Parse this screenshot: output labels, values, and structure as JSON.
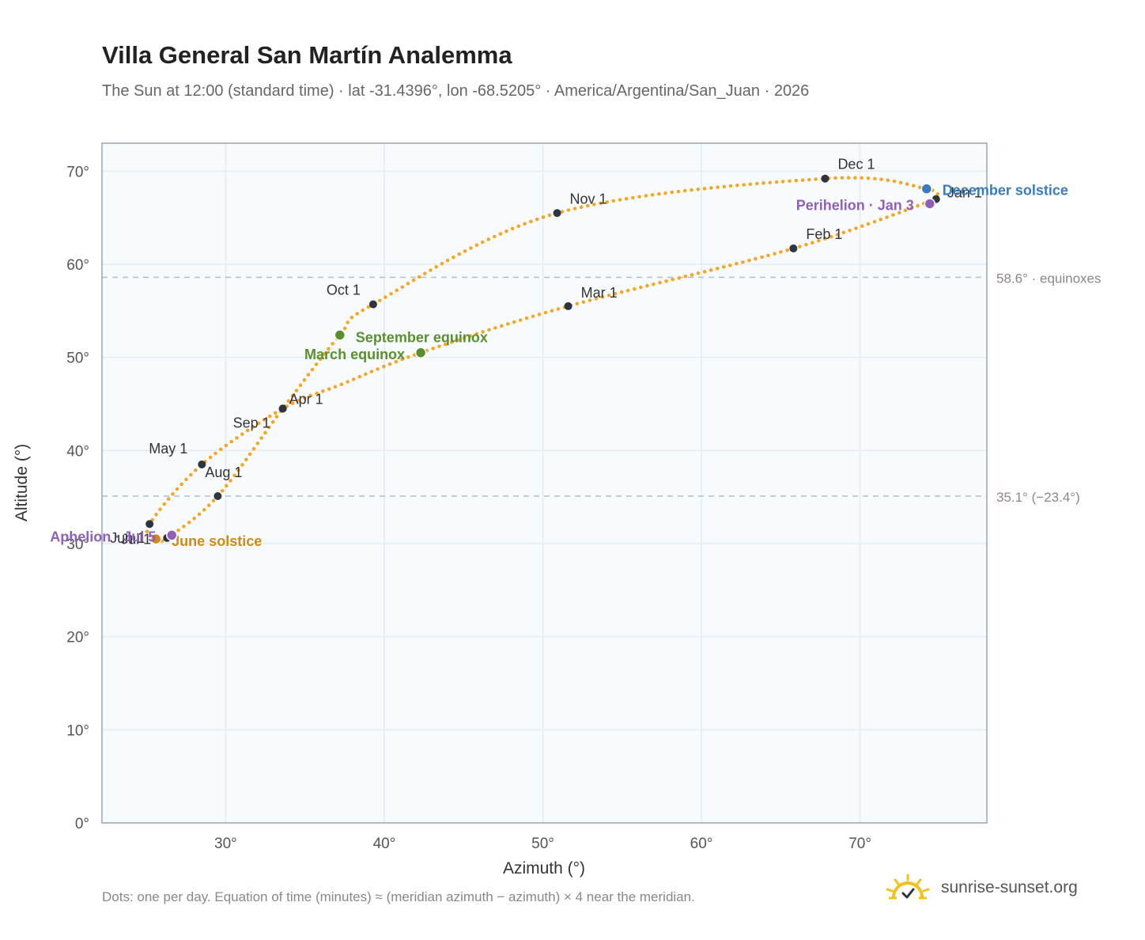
{
  "header": {
    "title": "Villa General San Martín Analemma",
    "subtitle": "The Sun at 12:00 (standard time) · lat -31.4396°, lon -68.5205° · America/Argentina/San_Juan · 2026"
  },
  "footer": {
    "note": "Dots: one per day. Equation of time (minutes) ≈ (meridian azimuth − azimuth) × 4 near the meridian.",
    "brand": "sunrise-sunset.org"
  },
  "colors": {
    "curve": "#f5a623",
    "month_dot": "#2d3540",
    "equinox": "#5a8f2e",
    "june_solstice": "#d08b16",
    "december_solstice": "#3a7bbf",
    "apsis": "#9060b8",
    "plot_bg": "#f8fbfd",
    "grid": "#e6ebf0",
    "frame": "#9aa6b4"
  },
  "chart_data": {
    "type": "scatter",
    "xlabel": "Azimuth (°)",
    "ylabel": "Altitude (°)",
    "xlim": [
      22.2,
      78
    ],
    "ylim": [
      0,
      73
    ],
    "xticks": [
      30,
      40,
      50,
      60,
      70
    ],
    "yticks": [
      0,
      10,
      20,
      30,
      40,
      50,
      60,
      70
    ],
    "xtick_labels": [
      "30°",
      "40°",
      "50°",
      "60°",
      "70°"
    ],
    "ytick_labels": [
      "0°",
      "10°",
      "20°",
      "30°",
      "40°",
      "50°",
      "60°",
      "70°"
    ],
    "grid": true,
    "reference_lines": [
      {
        "y": 58.6,
        "label": "58.6° · equinoxes"
      },
      {
        "y": 35.1,
        "label": "35.1° (−23.4°)"
      }
    ],
    "month_points": [
      {
        "label": "Jan 1",
        "x": 74.8,
        "y": 67.0
      },
      {
        "label": "Feb 1",
        "x": 65.8,
        "y": 61.7
      },
      {
        "label": "Mar 1",
        "x": 51.6,
        "y": 55.5
      },
      {
        "label": "Apr 1",
        "x": 33.6,
        "y": 44.5
      },
      {
        "label": "May 1",
        "x": 28.5,
        "y": 38.5
      },
      {
        "label": "Jun 1",
        "x": 26.3,
        "y": 30.6
      },
      {
        "label": "Jul 1",
        "x": 25.2,
        "y": 32.1
      },
      {
        "label": "Aug 1",
        "x": 29.5,
        "y": 35.1
      },
      {
        "label": "Sep 1",
        "x": 33.6,
        "y": 44.5
      },
      {
        "label": "Oct 1",
        "x": 39.3,
        "y": 55.7
      },
      {
        "label": "Nov 1",
        "x": 50.9,
        "y": 65.5
      },
      {
        "label": "Dec 1",
        "x": 67.8,
        "y": 69.2
      }
    ],
    "events": [
      {
        "label": "March equinox",
        "x": 42.3,
        "y": 50.5,
        "color_key": "equinox"
      },
      {
        "label": "September equinox",
        "x": 37.2,
        "y": 52.4,
        "color_key": "equinox"
      },
      {
        "label": "June solstice",
        "x": 25.6,
        "y": 30.5,
        "color_key": "june_solstice"
      },
      {
        "label": "December solstice",
        "x": 74.2,
        "y": 68.1,
        "color_key": "december_solstice"
      },
      {
        "label": "Perihelion · Jan 3",
        "x": 74.4,
        "y": 66.5,
        "color_key": "apsis"
      },
      {
        "label": "Aphelion · Jul 5",
        "x": 26.6,
        "y": 30.9,
        "color_key": "apsis"
      }
    ],
    "path_vertices": [
      {
        "x": 74.8,
        "y": 67.0
      },
      {
        "x": 65.8,
        "y": 61.7
      },
      {
        "x": 51.6,
        "y": 55.5
      },
      {
        "x": 42.3,
        "y": 50.5
      },
      {
        "x": 37.3,
        "y": 47.1
      },
      {
        "x": 33.6,
        "y": 44.5
      },
      {
        "x": 28.5,
        "y": 38.5
      },
      {
        "x": 25.2,
        "y": 32.1
      },
      {
        "x": 25.6,
        "y": 30.6
      },
      {
        "x": 26.3,
        "y": 30.6
      },
      {
        "x": 29.5,
        "y": 35.1
      },
      {
        "x": 33.6,
        "y": 44.5
      },
      {
        "x": 37.2,
        "y": 52.4
      },
      {
        "x": 39.3,
        "y": 55.7
      },
      {
        "x": 50.9,
        "y": 65.5
      },
      {
        "x": 67.8,
        "y": 69.2
      },
      {
        "x": 74.2,
        "y": 68.1
      },
      {
        "x": 74.8,
        "y": 67.0
      }
    ]
  }
}
